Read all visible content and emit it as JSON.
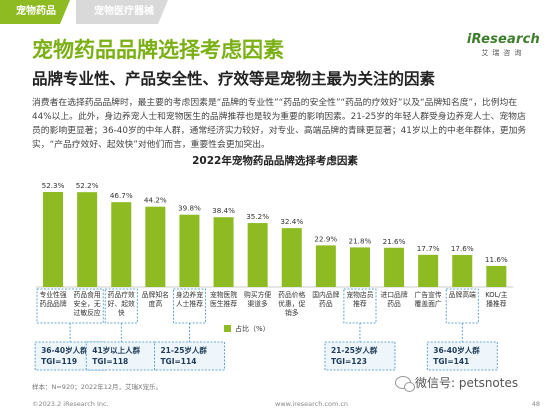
{
  "tabs": {
    "active": "宠物药品",
    "inactive": "宠物医疗器械"
  },
  "logo": {
    "main": "iResearch",
    "sub": "艾瑞咨询"
  },
  "title": "宠物药品品牌选择考虑因素",
  "subtitle": "品牌专业性、产品安全性、疗效等是宠物主最为关注的因素",
  "body": "消费者在选择药品品牌时，最主要的考虑因素是“品牌的专业性”“药品的安全性”“药品的疗效好”以及“品牌知名度”，比例均在44%以上。此外，身边养宠人士和宠物医生的品牌推荐也是较为重要的影响因素。21-25岁的年轻人群受身边养宠人士、宠物店员的影响更显著；36-40岁的中年人群，通常经济实力较好，对专业、高端品牌的青睐更显著；41岁以上的中老年群体，更加务实，“产品疗效好、起效快”对他们而言，重要性会更加突出。",
  "source": "样本：N=920；2022年12月，艾瑞X宠乐。",
  "copyright": "©2023.2 iResearch Inc.",
  "website": "www.iresearch.com.cn",
  "page_number": "48",
  "wechat": "微信号: petsnotes",
  "colors": {
    "bar": "#8dbb21",
    "accent": "#7bb014",
    "box_border": "#3d8fc4",
    "box_bg": "#eef6fc"
  },
  "chart_data": {
    "type": "bar",
    "title": "2022年宠物药品品牌选择考虑因素",
    "categories": [
      "专业性强\n药品品牌",
      "药品食用\n安全，无\n过敏反应",
      "药品疗效\n好、起效\n快",
      "品牌知名\n度高",
      "身边养宠\n人士推荐",
      "宠物医院\n医生推荐",
      "购买方便\n渠道多",
      "药品价格\n优惠，促\n销多",
      "国内品牌\n药品",
      "宠物店员\n推荐",
      "进口品牌\n药品",
      "广告宣传\n覆盖面广",
      "品牌高端",
      "KOL/主\n播推荐"
    ],
    "values": [
      52.3,
      52.2,
      46.7,
      44.2,
      39.8,
      38.4,
      35.2,
      32.4,
      22.9,
      21.8,
      21.6,
      17.7,
      17.6,
      11.6
    ],
    "value_labels": [
      "52.3%",
      "52.2%",
      "46.7%",
      "44.2%",
      "39.8%",
      "38.4%",
      "35.2%",
      "32.4%",
      "22.9%",
      "21.8%",
      "21.6%",
      "17.7%",
      "17.6%",
      "11.6%"
    ],
    "legend": "占比（%）",
    "ylim": [
      0,
      60
    ],
    "highlight_groups": [
      {
        "categories": [
          "专业性强\n药品品牌",
          "药品食用\n安全，无\n过敏反应"
        ],
        "label": "36-40岁人群",
        "tgi": "TGI=119"
      },
      {
        "categories": [
          "药品疗效\n好、起效\n快"
        ],
        "label": "41岁以上人群",
        "tgi": "TGI=118"
      },
      {
        "categories": [
          "身边养宠\n人士推荐"
        ],
        "label": "21-25岁人群",
        "tgi": "TGI=114"
      },
      {
        "categories": [
          "宠物店员\n推荐"
        ],
        "label": "21-25岁人群",
        "tgi": "TGI=123"
      },
      {
        "categories": [
          "品牌高端"
        ],
        "label": "36-40岁人群",
        "tgi": "TGI=141"
      }
    ]
  }
}
